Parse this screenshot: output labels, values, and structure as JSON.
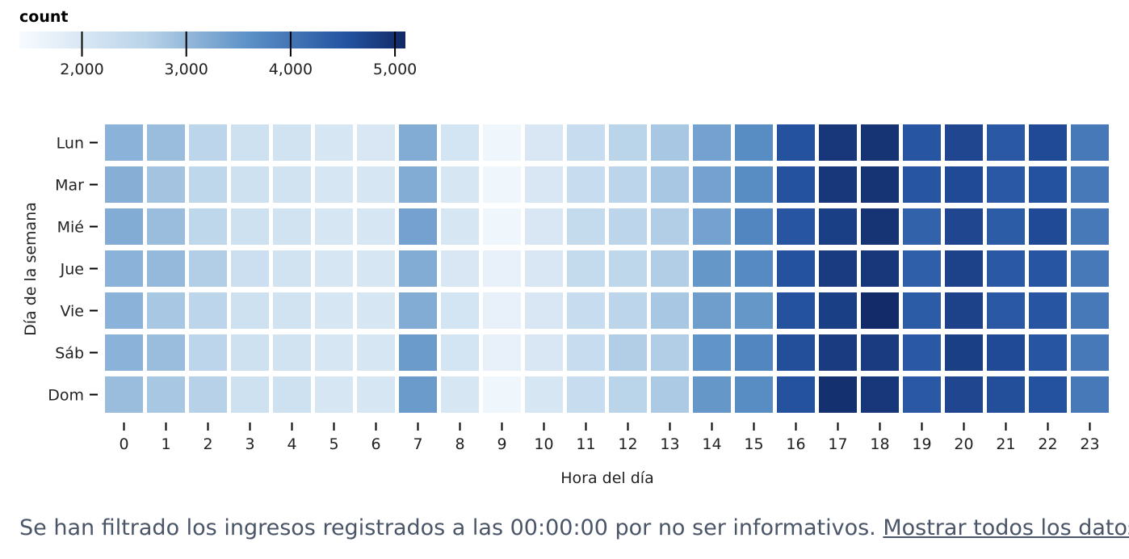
{
  "chart_data": {
    "type": "heatmap",
    "title": "",
    "xlabel": "Hora del día",
    "ylabel": "Día de la semana",
    "x": [
      "0",
      "1",
      "2",
      "3",
      "4",
      "5",
      "6",
      "7",
      "8",
      "9",
      "10",
      "11",
      "12",
      "13",
      "14",
      "15",
      "16",
      "17",
      "18",
      "19",
      "20",
      "21",
      "22",
      "23"
    ],
    "y": [
      "Lun",
      "Mar",
      "Mié",
      "Jue",
      "Vie",
      "Sáb",
      "Dom"
    ],
    "legend": {
      "title": "count",
      "ticks": [
        2000,
        3000,
        4000,
        5000
      ],
      "tick_labels": [
        "2,000",
        "3,000",
        "4,000",
        "5,000"
      ],
      "domain": [
        1400,
        5100
      ],
      "placement": "top-left"
    },
    "values": [
      [
        3100,
        2950,
        2550,
        2200,
        2150,
        2050,
        2000,
        3200,
        2100,
        1550,
        2000,
        2350,
        2600,
        2800,
        3350,
        3650,
        4550,
        4900,
        4950,
        4500,
        4700,
        4450,
        4650,
        3950
      ],
      [
        3150,
        2850,
        2500,
        2200,
        2150,
        2050,
        2050,
        3200,
        2050,
        1550,
        2000,
        2350,
        2550,
        2800,
        3350,
        3650,
        4550,
        4900,
        4950,
        4500,
        4650,
        4450,
        4550,
        3950
      ],
      [
        3200,
        2950,
        2500,
        2200,
        2150,
        2050,
        2050,
        3350,
        2050,
        1550,
        2000,
        2400,
        2550,
        2700,
        3350,
        3750,
        4500,
        4800,
        4950,
        4300,
        4700,
        4400,
        4650,
        3950
      ],
      [
        3100,
        3000,
        2700,
        2250,
        2150,
        2050,
        2050,
        3200,
        2000,
        1700,
        2000,
        2400,
        2500,
        2700,
        3500,
        3700,
        4550,
        4850,
        4900,
        4350,
        4750,
        4450,
        4500,
        3950
      ],
      [
        3100,
        2800,
        2550,
        2200,
        2150,
        2050,
        2050,
        3200,
        2100,
        1700,
        2000,
        2350,
        2550,
        2800,
        3400,
        3500,
        4550,
        4800,
        5050,
        4400,
        4750,
        4450,
        4500,
        3950
      ],
      [
        3100,
        2950,
        2550,
        2200,
        2150,
        2050,
        2050,
        3450,
        2100,
        1700,
        2000,
        2350,
        2700,
        2700,
        3550,
        3750,
        4600,
        4850,
        4850,
        4450,
        4800,
        4650,
        4500,
        3950
      ],
      [
        2950,
        2800,
        2650,
        2200,
        2200,
        2050,
        2050,
        3450,
        2050,
        1550,
        2050,
        2350,
        2600,
        2750,
        3500,
        3650,
        4550,
        5000,
        4900,
        4450,
        4700,
        4600,
        4550,
        3950
      ]
    ]
  },
  "footer": {
    "text": "Se han filtrado los ingresos registrados a las 00:00:00 por no ser informativos.",
    "link": "Mostrar todos los datos"
  }
}
